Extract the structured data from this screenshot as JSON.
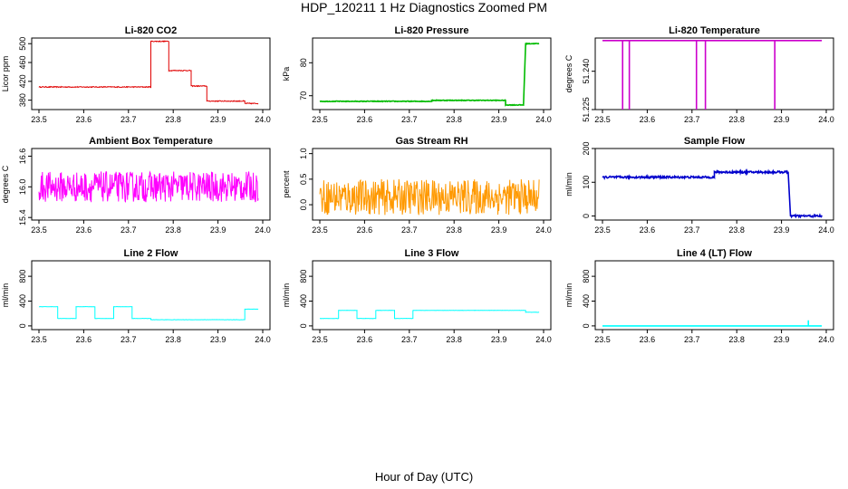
{
  "figure": {
    "title": "HDP_120211  1 Hz Diagnostics Zoomed PM",
    "xlabel": "Hour of Day (UTC)"
  },
  "chart_data": [
    {
      "type": "line",
      "title": "Li-820 CO2",
      "ylabel": "Licor ppm",
      "color": "#e00000",
      "xlim": [
        23.5,
        24.0
      ],
      "ylim": [
        360,
        512
      ],
      "xticks": [
        "23.5",
        "23.6",
        "23.7",
        "23.8",
        "23.9",
        "24.0"
      ],
      "yticks": [
        "380",
        "420",
        "460",
        "500"
      ],
      "segments": [
        [
          23.5,
          23.75,
          408
        ],
        [
          23.75,
          23.79,
          505
        ],
        [
          23.79,
          23.84,
          443
        ],
        [
          23.84,
          23.875,
          410
        ],
        [
          23.875,
          23.96,
          378
        ],
        [
          23.96,
          23.99,
          373
        ]
      ],
      "noise": 1,
      "grid": false
    },
    {
      "type": "line",
      "title": "Li-820 Pressure",
      "ylabel": "kPa",
      "color": "#00bb00",
      "xlim": [
        23.5,
        24.0
      ],
      "ylim": [
        65.8,
        87.5
      ],
      "xticks": [
        "23.5",
        "23.6",
        "23.7",
        "23.8",
        "23.9",
        "24.0"
      ],
      "yticks": [
        "70",
        "80"
      ],
      "segments": [
        [
          23.5,
          23.75,
          68.3
        ],
        [
          23.75,
          23.915,
          68.6
        ],
        [
          23.915,
          23.955,
          67.2
        ],
        [
          23.96,
          23.99,
          85.8
        ]
      ],
      "noise": 0.1,
      "grid": false
    },
    {
      "type": "line",
      "title": "Li-820 Temperature",
      "ylabel": "degrees C",
      "color": "#cc00cc",
      "xlim": [
        23.5,
        24.0
      ],
      "ylim": [
        51.225,
        51.253
      ],
      "xticks": [
        "23.5",
        "23.6",
        "23.7",
        "23.8",
        "23.9",
        "24.0"
      ],
      "yticks": [
        "51.225",
        "51.240"
      ],
      "segments": [
        [
          23.5,
          23.99,
          51.252
        ]
      ],
      "spikes": [
        [
          23.545,
          51.225
        ],
        [
          23.56,
          51.225
        ],
        [
          23.71,
          51.225
        ],
        [
          23.73,
          51.225
        ],
        [
          23.885,
          51.225
        ]
      ],
      "noise": 0,
      "grid": false
    },
    {
      "type": "line",
      "title": "Ambient Box Temperature",
      "ylabel": "degrees C",
      "color": "#ff00ff",
      "xlim": [
        23.5,
        24.0
      ],
      "ylim": [
        15.35,
        16.75
      ],
      "xticks": [
        "23.5",
        "23.6",
        "23.7",
        "23.8",
        "23.9",
        "24.0"
      ],
      "yticks": [
        "15.4",
        "16.0",
        "16.6"
      ],
      "segments": [
        [
          23.5,
          23.99,
          16.0
        ]
      ],
      "noise": 0.3,
      "grid": false
    },
    {
      "type": "line",
      "title": "Gas Stream RH",
      "ylabel": "percent",
      "color": "#ff9900",
      "xlim": [
        23.5,
        24.0
      ],
      "ylim": [
        -0.3,
        1.1
      ],
      "xticks": [
        "23.5",
        "23.6",
        "23.7",
        "23.8",
        "23.9",
        "24.0"
      ],
      "yticks": [
        "0.0",
        "0.5",
        "1.0"
      ],
      "segments": [
        [
          23.5,
          23.99,
          0.15
        ]
      ],
      "noise": 0.35,
      "grid": false
    },
    {
      "type": "line",
      "title": "Sample Flow",
      "ylabel": "ml/min",
      "color": "#0000cc",
      "xlim": [
        23.5,
        24.0
      ],
      "ylim": [
        -12,
        200
      ],
      "xticks": [
        "23.5",
        "23.6",
        "23.7",
        "23.8",
        "23.9",
        "24.0"
      ],
      "yticks": [
        "0",
        "100",
        "200"
      ],
      "segments": [
        [
          23.5,
          23.75,
          115
        ],
        [
          23.75,
          23.915,
          130
        ],
        [
          23.92,
          23.99,
          0
        ]
      ],
      "noise": 3,
      "grid": false
    },
    {
      "type": "line",
      "title": "Line 2 Flow",
      "ylabel": "ml/min",
      "color": "#00ffff",
      "xlim": [
        23.5,
        24.0
      ],
      "ylim": [
        -60,
        1050
      ],
      "xticks": [
        "23.5",
        "23.6",
        "23.7",
        "23.8",
        "23.9",
        "24.0"
      ],
      "yticks": [
        "0",
        "400",
        "800"
      ],
      "segments": [
        [
          23.5,
          23.542,
          310
        ],
        [
          23.542,
          23.583,
          120
        ],
        [
          23.583,
          23.625,
          310
        ],
        [
          23.625,
          23.667,
          120
        ],
        [
          23.667,
          23.708,
          310
        ],
        [
          23.708,
          23.75,
          120
        ],
        [
          23.75,
          23.96,
          100
        ],
        [
          23.96,
          23.99,
          270
        ]
      ],
      "noise": 2,
      "grid": false
    },
    {
      "type": "line",
      "title": "Line 3 Flow",
      "ylabel": "ml/min",
      "color": "#00ffff",
      "xlim": [
        23.5,
        24.0
      ],
      "ylim": [
        -60,
        1050
      ],
      "xticks": [
        "23.5",
        "23.6",
        "23.7",
        "23.8",
        "23.9",
        "24.0"
      ],
      "yticks": [
        "0",
        "400",
        "800"
      ],
      "segments": [
        [
          23.5,
          23.542,
          120
        ],
        [
          23.542,
          23.583,
          250
        ],
        [
          23.583,
          23.625,
          120
        ],
        [
          23.625,
          23.667,
          250
        ],
        [
          23.667,
          23.708,
          120
        ],
        [
          23.708,
          23.96,
          250
        ],
        [
          23.96,
          23.99,
          220
        ]
      ],
      "noise": 2,
      "grid": false
    },
    {
      "type": "line",
      "title": "Line 4 (LT) Flow",
      "ylabel": "ml/min",
      "color": "#00ffff",
      "xlim": [
        23.5,
        24.0
      ],
      "ylim": [
        -60,
        1050
      ],
      "xticks": [
        "23.5",
        "23.6",
        "23.7",
        "23.8",
        "23.9",
        "24.0"
      ],
      "yticks": [
        "0",
        "400",
        "800"
      ],
      "segments": [
        [
          23.5,
          23.99,
          0
        ]
      ],
      "spikes": [
        [
          23.96,
          90
        ]
      ],
      "noise": 0,
      "grid": false
    }
  ]
}
